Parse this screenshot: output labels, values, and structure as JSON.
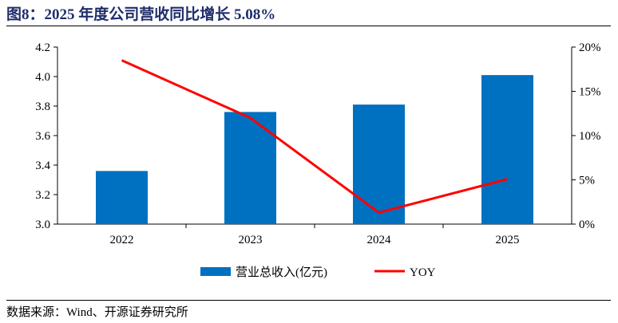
{
  "title": "图8：2025 年度公司营收同比增长 5.08%",
  "source": "数据来源：Wind、开源证券研究所",
  "colors": {
    "bar": "#0070c0",
    "line": "#ff0000",
    "title": "#1f2d6b"
  },
  "chart_data": {
    "type": "bar+line",
    "categories": [
      "2022",
      "2023",
      "2024",
      "2025"
    ],
    "series": [
      {
        "name": "营业总收入(亿元)",
        "type": "bar",
        "axis": "left",
        "values": [
          3.36,
          3.76,
          3.81,
          4.01
        ]
      },
      {
        "name": "YOY",
        "type": "line",
        "axis": "right",
        "values": [
          0.185,
          0.12,
          0.013,
          0.0508
        ]
      }
    ],
    "left_axis": {
      "min": 3.0,
      "max": 4.2,
      "ticks": [
        "3.0",
        "3.2",
        "3.4",
        "3.6",
        "3.8",
        "4.0",
        "4.2"
      ]
    },
    "right_axis": {
      "min": 0,
      "max": 0.2,
      "ticks": [
        "0%",
        "5%",
        "10%",
        "15%",
        "20%"
      ]
    },
    "legend_position": "bottom",
    "grid": false
  }
}
